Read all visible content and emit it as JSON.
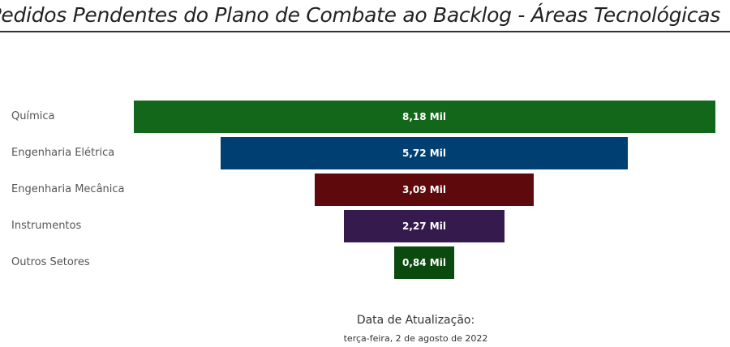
{
  "title": "Pedidos Pendentes do Plano de Combate ao Backlog - Áreas Tecnológicas",
  "chart_data": {
    "type": "funnel",
    "categories": [
      "Química",
      "Engenharia Elétrica",
      "Engenharia Mecânica",
      "Instrumentos",
      "Outros Setores"
    ],
    "values": [
      8180,
      5720,
      3090,
      2270,
      840
    ],
    "data_labels": [
      "8,18 Mil",
      "5,72 Mil",
      "3,09 Mil",
      "2,27 Mil",
      "0,84 Mil"
    ],
    "colors": [
      "#13671a",
      "#003f72",
      "#5e0a0c",
      "#341a4d",
      "#0b4a0e"
    ]
  },
  "footer": {
    "label": "Data de Atualização:",
    "date": "terça-feira, 2 de agosto de 2022"
  }
}
